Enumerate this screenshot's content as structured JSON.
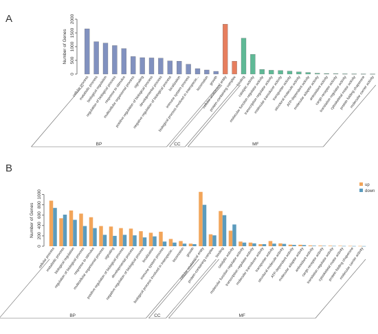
{
  "chart_data": [
    {
      "panel_label": "A",
      "type": "bar",
      "ylabel": "Number of Genes",
      "yticks": [
        0,
        500,
        1000,
        1500,
        2000
      ],
      "ylim": [
        0,
        2000
      ],
      "categories": [
        "cellular process",
        "metabolic process",
        "biological regulation",
        "regulation of biological process",
        "response to stimulus",
        "multicellular organismal process",
        "signaling",
        "positive regulation of biological process",
        "developmental process",
        "negative regulation of biological process",
        "localization",
        "immune system process",
        "biological process involved in interspecie...",
        "locomotion",
        "growth",
        "cellular anatomical entity",
        "protein-containing complex",
        "binding",
        "catalytic activity",
        "molecular function regulator activity",
        "transcription regulator activity",
        "molecular transducer activity",
        "transporter activity",
        "structural molecule activity",
        "ATP-dependent activity",
        "molecular adaptor activity",
        "antioxidant activity",
        "cargo receptor activity",
        "translation regulator activity",
        "cytoskeletal motor activity",
        "protein folding chaperone",
        "molecular carrier activity"
      ],
      "values": [
        1650,
        1180,
        1130,
        1040,
        930,
        640,
        600,
        590,
        580,
        480,
        470,
        360,
        200,
        150,
        100,
        1820,
        470,
        1310,
        720,
        170,
        140,
        130,
        110,
        80,
        60,
        30,
        20,
        15,
        12,
        10,
        8,
        6
      ],
      "groups": [
        {
          "name": "BP",
          "start": 0,
          "end": 14,
          "color": "#8191bf"
        },
        {
          "name": "CC",
          "start": 15,
          "end": 16,
          "color": "#e67e5e"
        },
        {
          "name": "MF",
          "start": 17,
          "end": 31,
          "color": "#5fb996"
        }
      ]
    },
    {
      "panel_label": "B",
      "type": "bar",
      "ylabel": "Number of Genes",
      "yticks": [
        0,
        200,
        400,
        600,
        800,
        1000
      ],
      "ylim": [
        0,
        1100
      ],
      "categories": [
        "cellular process",
        "metabolic process",
        "biological regulation",
        "regulation of biological process",
        "response to stimulus",
        "multicellular organismal process",
        "signaling",
        "positive regulation of biological process",
        "developmental process",
        "negative regulation of biological process",
        "localization",
        "immune system process",
        "biological process involved in interspecie...",
        "locomotion",
        "growth",
        "cellular anatomical entity",
        "protein-containing complex",
        "binding",
        "catalytic activity",
        "molecular function regulator activity",
        "transcription regulator activity",
        "molecular transducer activity",
        "transporter activity",
        "structural molecule activity",
        "ATP-dependent activity",
        "molecular adaptor activity",
        "antioxidant activity",
        "cargo receptor activity",
        "translation regulator activity",
        "cytoskeletal motor activity",
        "protein folding chaperone",
        "molecular carrier activity"
      ],
      "series": [
        {
          "name": "up",
          "color": "#f2a55a",
          "values": [
            880,
            540,
            690,
            630,
            560,
            390,
            380,
            350,
            340,
            290,
            260,
            280,
            140,
            100,
            50,
            1050,
            230,
            680,
            300,
            90,
            70,
            40,
            100,
            55,
            30,
            28,
            15,
            12,
            10,
            8,
            6,
            5
          ]
        },
        {
          "name": "down",
          "color": "#5b9bbd",
          "values": [
            740,
            610,
            510,
            390,
            350,
            220,
            200,
            220,
            210,
            170,
            190,
            90,
            70,
            50,
            40,
            800,
            210,
            600,
            420,
            70,
            55,
            40,
            50,
            45,
            25,
            22,
            10,
            8,
            6,
            5,
            4,
            3
          ]
        }
      ],
      "groups": [
        {
          "name": "BP",
          "start": 0,
          "end": 14
        },
        {
          "name": "CC",
          "start": 15,
          "end": 16
        },
        {
          "name": "MF",
          "start": 17,
          "end": 31
        }
      ],
      "legend": "top-right"
    }
  ]
}
